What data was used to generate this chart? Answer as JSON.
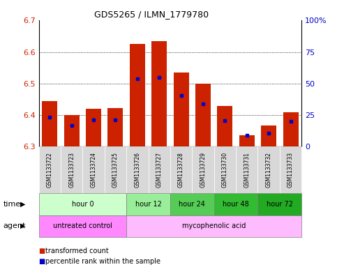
{
  "title": "GDS5265 / ILMN_1779780",
  "samples": [
    "GSM1133722",
    "GSM1133723",
    "GSM1133724",
    "GSM1133725",
    "GSM1133726",
    "GSM1133727",
    "GSM1133728",
    "GSM1133729",
    "GSM1133730",
    "GSM1133731",
    "GSM1133732",
    "GSM1133733"
  ],
  "bar_bottoms": [
    6.3,
    6.3,
    6.3,
    6.3,
    6.3,
    6.3,
    6.3,
    6.3,
    6.3,
    6.3,
    6.3,
    6.3
  ],
  "bar_tops": [
    6.445,
    6.4,
    6.42,
    6.422,
    6.625,
    6.635,
    6.535,
    6.5,
    6.43,
    6.335,
    6.368,
    6.408
  ],
  "percentile_values": [
    6.393,
    6.367,
    6.385,
    6.385,
    6.515,
    6.52,
    6.462,
    6.435,
    6.383,
    6.337,
    6.343,
    6.38
  ],
  "ylim": [
    6.3,
    6.7
  ],
  "yticks": [
    6.3,
    6.4,
    6.5,
    6.6,
    6.7
  ],
  "right_ytick_pcts": [
    0,
    25,
    50,
    75,
    100
  ],
  "right_ylabels": [
    "0",
    "25",
    "50",
    "75",
    "100%"
  ],
  "bar_color": "#cc2200",
  "percentile_color": "#0000cc",
  "plot_bg": "#ffffff",
  "sample_bg": "#d8d8d8",
  "time_groups": [
    {
      "label": "hour 0",
      "start": 0,
      "end": 4,
      "color": "#ccffcc"
    },
    {
      "label": "hour 12",
      "start": 4,
      "end": 6,
      "color": "#99ee99"
    },
    {
      "label": "hour 24",
      "start": 6,
      "end": 8,
      "color": "#55cc55"
    },
    {
      "label": "hour 48",
      "start": 8,
      "end": 10,
      "color": "#33bb33"
    },
    {
      "label": "hour 72",
      "start": 10,
      "end": 12,
      "color": "#22aa22"
    }
  ],
  "agent_groups": [
    {
      "label": "untreated control",
      "start": 0,
      "end": 4,
      "color": "#ff88ff"
    },
    {
      "label": "mycophenolic acid",
      "start": 4,
      "end": 12,
      "color": "#ffbbff"
    }
  ],
  "legend_red": "transformed count",
  "legend_blue": "percentile rank within the sample"
}
